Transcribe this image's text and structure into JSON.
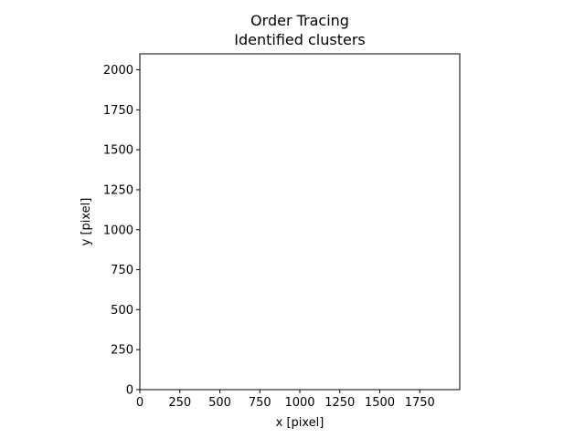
{
  "chart_data": {
    "type": "scatter",
    "title": "Order Tracing",
    "subtitle": "Identified clusters",
    "xlabel": "x [pixel]",
    "ylabel": "y [pixel]",
    "xlim": [
      0,
      2000
    ],
    "ylim": [
      0,
      2100
    ],
    "xticks": [
      0,
      250,
      500,
      750,
      1000,
      1250,
      1500,
      1750
    ],
    "yticks": [
      0,
      250,
      500,
      750,
      1000,
      1250,
      1500,
      1750,
      2000
    ],
    "grid": false,
    "series": [],
    "colors": {
      "frame": "#000000",
      "background": "#ffffff"
    }
  }
}
